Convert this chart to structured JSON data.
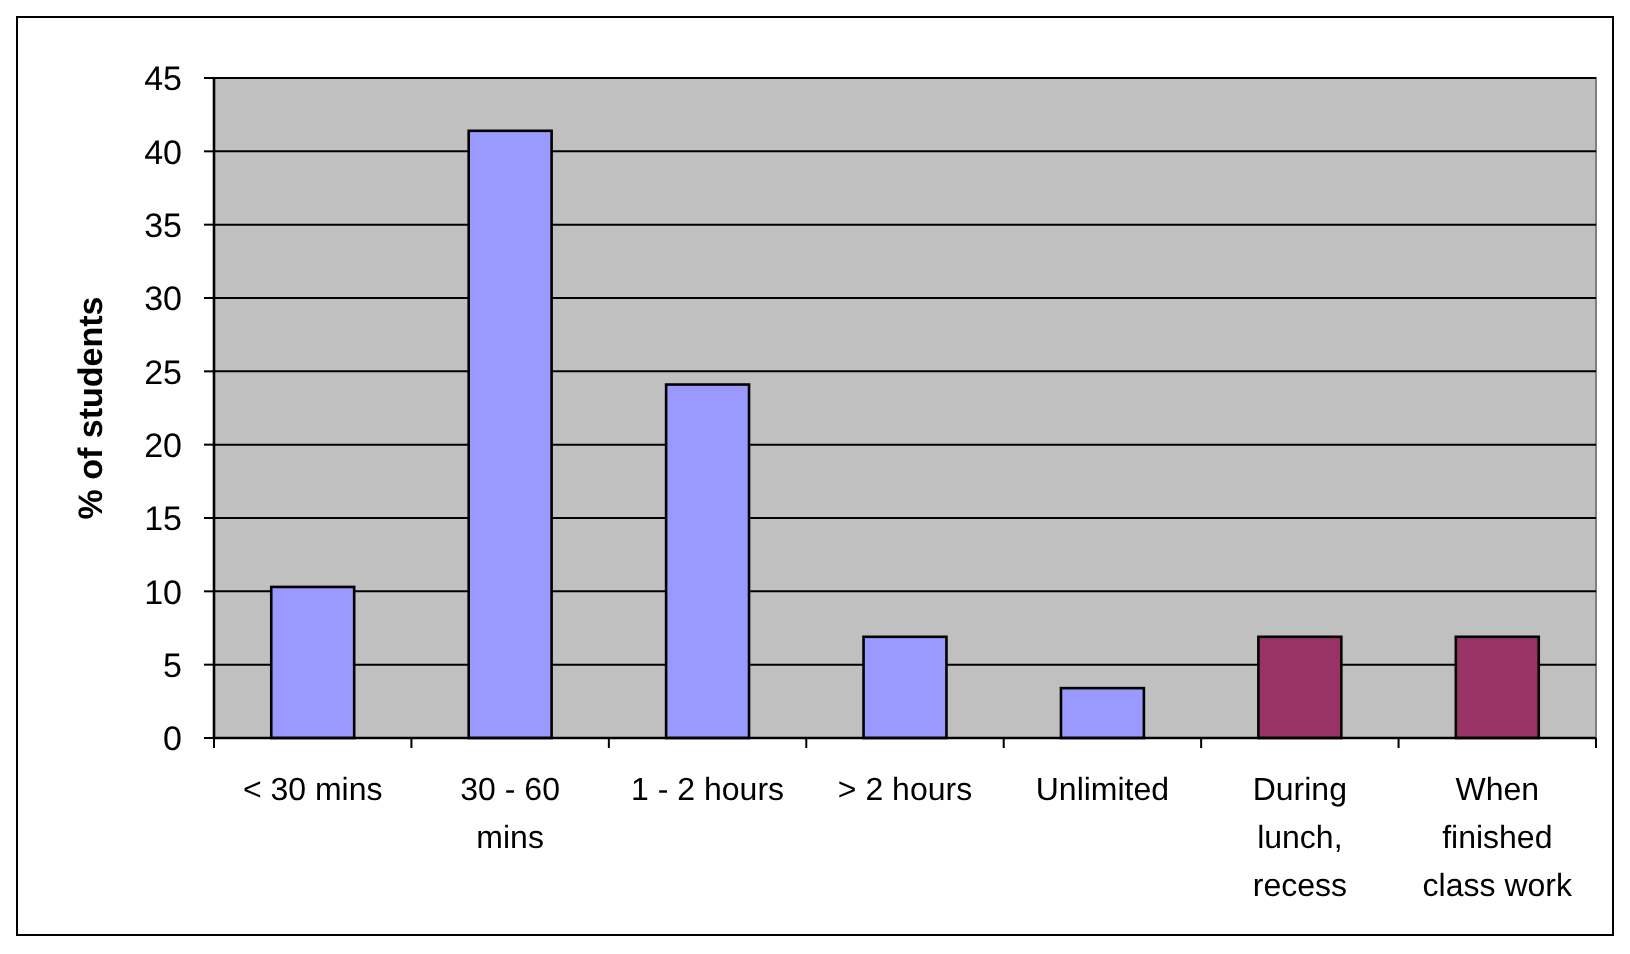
{
  "chart_data": {
    "type": "bar",
    "ylabel": "% of students",
    "categories": [
      "< 30 mins",
      "30 - 60 mins",
      "1 - 2 hours",
      "> 2 hours",
      "Unlimited",
      "During lunch, recess",
      "When finished class work"
    ],
    "values": [
      10.3,
      41.4,
      24.1,
      6.9,
      3.4,
      6.9,
      6.9
    ],
    "colors": [
      "#9999ff",
      "#9999ff",
      "#9999ff",
      "#9999ff",
      "#9999ff",
      "#993366",
      "#993366"
    ],
    "ylim": [
      0,
      45
    ],
    "yticks": [
      0,
      5,
      10,
      15,
      20,
      25,
      30,
      35,
      40,
      45
    ],
    "grid": "y"
  }
}
